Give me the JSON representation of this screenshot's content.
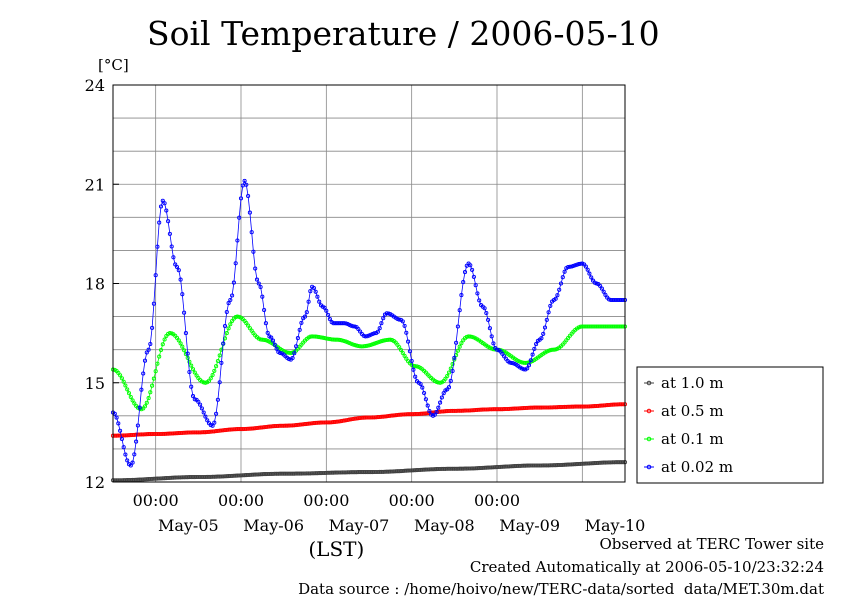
{
  "chart_data": {
    "type": "line",
    "title": "Soil Temperature / 2006-05-10",
    "ylabel": "[°C]",
    "xlabel": "(LST)",
    "ylim": [
      12,
      24
    ],
    "yticks": [
      12,
      15,
      18,
      21,
      24
    ],
    "xlim": [
      0,
      144
    ],
    "x_unit": "hours since 2006-05-04 12:00 LST",
    "time_ticks": [
      "00:00",
      "00:00",
      "00:00",
      "00:00",
      "00:00"
    ],
    "date_labels": [
      "May-05",
      "May-06",
      "May-07",
      "May-08",
      "May-09",
      "May-10"
    ],
    "grid": true,
    "legend_position": "right",
    "series": [
      {
        "name": "at 1.0 m",
        "color": "#404040",
        "x": [
          0,
          24,
          48,
          72,
          96,
          120,
          144
        ],
        "y": [
          12.05,
          12.15,
          12.25,
          12.3,
          12.4,
          12.5,
          12.6
        ]
      },
      {
        "name": "at 0.5 m",
        "color": "#ff0000",
        "x": [
          0,
          12,
          24,
          36,
          48,
          60,
          72,
          84,
          96,
          108,
          120,
          132,
          144
        ],
        "y": [
          13.4,
          13.45,
          13.5,
          13.6,
          13.7,
          13.8,
          13.95,
          14.05,
          14.15,
          14.2,
          14.25,
          14.28,
          14.35
        ]
      },
      {
        "name": "at 0.1 m",
        "color": "#00ff00",
        "x": [
          0,
          8,
          16,
          26,
          35,
          42,
          50,
          56,
          63,
          70,
          78,
          85,
          92,
          100,
          108,
          116,
          124,
          132,
          140,
          144
        ],
        "y": [
          15.4,
          14.2,
          16.5,
          15.0,
          17.0,
          16.3,
          15.9,
          16.4,
          16.3,
          16.1,
          16.3,
          15.5,
          15.0,
          16.4,
          16.0,
          15.6,
          16.0,
          16.7,
          16.7,
          16.7
        ]
      },
      {
        "name": "at 0.02 m",
        "color": "#0000ff",
        "x": [
          0,
          5,
          10,
          14,
          18,
          23,
          28,
          33,
          37,
          41,
          44,
          47,
          50,
          54,
          56,
          59,
          62,
          65,
          68,
          71,
          74,
          77,
          81,
          86,
          90,
          94,
          100,
          104,
          108,
          112,
          116,
          120,
          124,
          128,
          132,
          136,
          140,
          144
        ],
        "y": [
          14.1,
          12.5,
          16.0,
          20.5,
          18.5,
          14.5,
          13.7,
          17.5,
          21.1,
          18.0,
          16.4,
          15.9,
          15.7,
          17.0,
          17.9,
          17.3,
          16.8,
          16.8,
          16.7,
          16.4,
          16.5,
          17.1,
          16.9,
          15.0,
          14.0,
          14.8,
          18.6,
          17.3,
          16.0,
          15.6,
          15.4,
          16.3,
          17.5,
          18.5,
          18.6,
          18.0,
          17.5,
          17.5
        ]
      }
    ]
  },
  "footer": {
    "observed": "Observed at TERC Tower site",
    "created": "Created Automatically at 2006-05-10/23:32:24",
    "source": "Data source : /home/hoivo/new/TERC-data/sorted  data/MET.30m.dat"
  }
}
